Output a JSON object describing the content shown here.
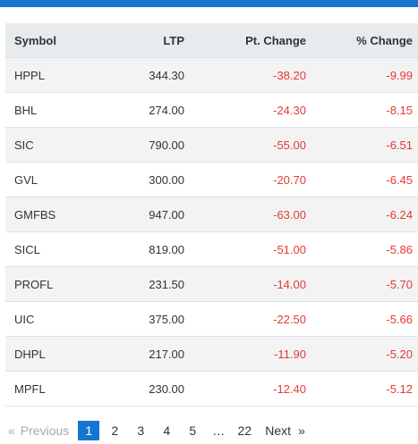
{
  "table": {
    "headers": {
      "symbol": "Symbol",
      "ltp": "LTP",
      "pt_change": "Pt. Change",
      "pct_change": "% Change"
    },
    "rows": [
      {
        "symbol": "HPPL",
        "ltp": "344.30",
        "pt_change": "-38.20",
        "pct_change": "-9.99"
      },
      {
        "symbol": "BHL",
        "ltp": "274.00",
        "pt_change": "-24.30",
        "pct_change": "-8.15"
      },
      {
        "symbol": "SIC",
        "ltp": "790.00",
        "pt_change": "-55.00",
        "pct_change": "-6.51"
      },
      {
        "symbol": "GVL",
        "ltp": "300.00",
        "pt_change": "-20.70",
        "pct_change": "-6.45"
      },
      {
        "symbol": "GMFBS",
        "ltp": "947.00",
        "pt_change": "-63.00",
        "pct_change": "-6.24"
      },
      {
        "symbol": "SICL",
        "ltp": "819.00",
        "pt_change": "-51.00",
        "pct_change": "-5.86"
      },
      {
        "symbol": "PROFL",
        "ltp": "231.50",
        "pt_change": "-14.00",
        "pct_change": "-5.70"
      },
      {
        "symbol": "UIC",
        "ltp": "375.00",
        "pt_change": "-22.50",
        "pct_change": "-5.66"
      },
      {
        "symbol": "DHPL",
        "ltp": "217.00",
        "pt_change": "-11.90",
        "pct_change": "-5.20"
      },
      {
        "symbol": "MPFL",
        "ltp": "230.00",
        "pt_change": "-12.40",
        "pct_change": "-5.12"
      }
    ]
  },
  "pagination": {
    "prev_icon": "«",
    "prev_label": "Previous",
    "pages": [
      "1",
      "2",
      "3",
      "4",
      "5"
    ],
    "active_page": "1",
    "ellipsis": "…",
    "last_page": "22",
    "next_label": "Next",
    "next_icon": "»"
  },
  "colors": {
    "accent": "#1576d1",
    "negative": "#e53935",
    "header_bg": "#e8ebee",
    "stripe_bg": "#f3f3f3"
  }
}
